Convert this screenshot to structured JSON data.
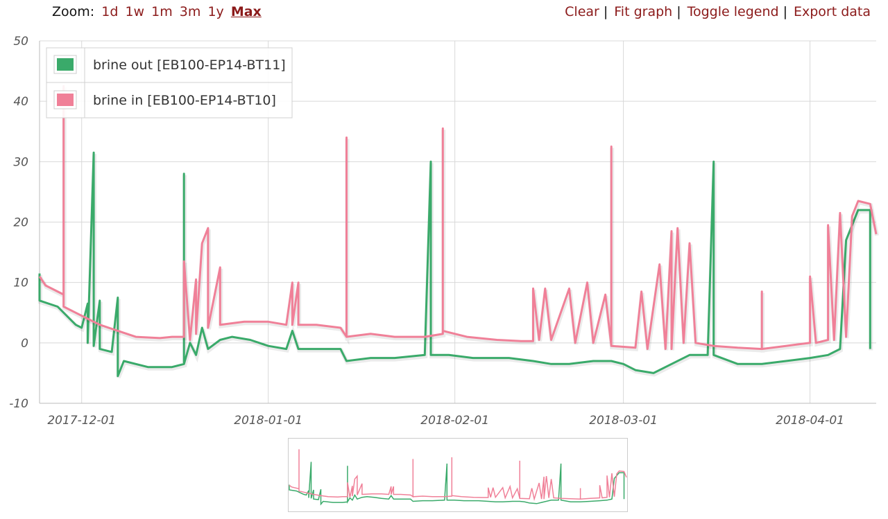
{
  "toolbar": {
    "zoom_label": "Zoom:",
    "zoom_options": [
      "1d",
      "1w",
      "1m",
      "3m",
      "1y",
      "Max"
    ],
    "zoom_active": "Max",
    "actions": [
      "Clear",
      "Fit graph",
      "Toggle legend",
      "Export data"
    ]
  },
  "colors": {
    "brine_out": "#3aaa6a",
    "brine_in": "#f08098",
    "link": "#8b1a1a",
    "grid": "#d8d8d8"
  },
  "chart_data": {
    "type": "line",
    "x_type": "date",
    "xlim": [
      "2017-11-24",
      "2018-04-12"
    ],
    "ylim": [
      -10,
      50
    ],
    "y_ticks": [
      "50",
      "40",
      "30",
      "20",
      "10",
      "0",
      "-10"
    ],
    "x_ticks": [
      "2017-12-01",
      "2018-01-01",
      "2018-02-01",
      "2018-03-01",
      "2018-04-01"
    ],
    "grid": true,
    "legend_position": "top-left",
    "series": [
      {
        "name": "brine out [EB100-EP14-BT11]",
        "color": "#3aaa6a",
        "points": [
          [
            "2017-11-24",
            11.5
          ],
          [
            "2017-11-24",
            7.0
          ],
          [
            "2017-11-27",
            6.0
          ],
          [
            "2017-11-29",
            4.0
          ],
          [
            "2017-11-30",
            3.0
          ],
          [
            "2017-12-01",
            2.5
          ],
          [
            "2017-12-02",
            6.5
          ],
          [
            "2017-12-02",
            0.0
          ],
          [
            "2017-12-03",
            31.5
          ],
          [
            "2017-12-03",
            -0.5
          ],
          [
            "2017-12-04",
            7.0
          ],
          [
            "2017-12-04",
            -1.0
          ],
          [
            "2017-12-06",
            -1.5
          ],
          [
            "2017-12-07",
            7.5
          ],
          [
            "2017-12-07",
            -5.5
          ],
          [
            "2017-12-08",
            -3.0
          ],
          [
            "2017-12-12",
            -4.0
          ],
          [
            "2017-12-16",
            -4.0
          ],
          [
            "2017-12-18",
            -3.5
          ],
          [
            "2017-12-18",
            28.0
          ],
          [
            "2017-12-18",
            -3.5
          ],
          [
            "2017-12-19",
            0.0
          ],
          [
            "2017-12-20",
            -2.0
          ],
          [
            "2017-12-21",
            2.5
          ],
          [
            "2017-12-22",
            -1.0
          ],
          [
            "2017-12-24",
            0.5
          ],
          [
            "2017-12-26",
            1.0
          ],
          [
            "2017-12-29",
            0.5
          ],
          [
            "2018-01-01",
            -0.5
          ],
          [
            "2018-01-04",
            -1.0
          ],
          [
            "2018-01-05",
            2.0
          ],
          [
            "2018-01-06",
            -1.0
          ],
          [
            "2018-01-10",
            -1.0
          ],
          [
            "2018-01-13",
            -1.0
          ],
          [
            "2018-01-14",
            -3.0
          ],
          [
            "2018-01-18",
            -2.5
          ],
          [
            "2018-01-22",
            -2.5
          ],
          [
            "2018-01-27",
            -2.0
          ],
          [
            "2018-01-28",
            30.0
          ],
          [
            "2018-01-28",
            -2.0
          ],
          [
            "2018-01-31",
            -2.0
          ],
          [
            "2018-02-04",
            -2.5
          ],
          [
            "2018-02-10",
            -2.5
          ],
          [
            "2018-02-14",
            -3.0
          ],
          [
            "2018-02-17",
            -3.5
          ],
          [
            "2018-02-20",
            -3.5
          ],
          [
            "2018-02-24",
            -3.0
          ],
          [
            "2018-02-27",
            -3.0
          ],
          [
            "2018-03-01",
            -3.5
          ],
          [
            "2018-03-03",
            -4.5
          ],
          [
            "2018-03-06",
            -5.0
          ],
          [
            "2018-03-08",
            -4.0
          ],
          [
            "2018-03-12",
            -2.0
          ],
          [
            "2018-03-15",
            -2.0
          ],
          [
            "2018-03-16",
            30.0
          ],
          [
            "2018-03-16",
            -2.0
          ],
          [
            "2018-03-20",
            -3.5
          ],
          [
            "2018-03-24",
            -3.5
          ],
          [
            "2018-03-28",
            -3.0
          ],
          [
            "2018-04-01",
            -2.5
          ],
          [
            "2018-04-04",
            -2.0
          ],
          [
            "2018-04-06",
            -1.0
          ],
          [
            "2018-04-07",
            17.0
          ],
          [
            "2018-04-09",
            22.0
          ],
          [
            "2018-04-11",
            22.0
          ],
          [
            "2018-04-11",
            -1.0
          ]
        ]
      },
      {
        "name": "brine in [EB100-EP14-BT10]",
        "color": "#f08098",
        "points": [
          [
            "2017-11-24",
            11.0
          ],
          [
            "2017-11-25",
            9.5
          ],
          [
            "2017-11-26",
            9.0
          ],
          [
            "2017-11-28",
            8.0
          ],
          [
            "2017-11-28",
            42.5
          ],
          [
            "2017-11-28",
            6.0
          ],
          [
            "2017-11-30",
            5.0
          ],
          [
            "2017-12-02",
            4.0
          ],
          [
            "2017-12-04",
            3.0
          ],
          [
            "2017-12-07",
            2.0
          ],
          [
            "2017-12-10",
            1.0
          ],
          [
            "2017-12-14",
            0.8
          ],
          [
            "2017-12-16",
            1.0
          ],
          [
            "2017-12-18",
            1.0
          ],
          [
            "2017-12-18",
            13.5
          ],
          [
            "2017-12-19",
            0.5
          ],
          [
            "2017-12-20",
            10.5
          ],
          [
            "2017-12-20",
            1.5
          ],
          [
            "2017-12-21",
            16.5
          ],
          [
            "2017-12-22",
            19.0
          ],
          [
            "2017-12-22",
            2.5
          ],
          [
            "2017-12-24",
            12.5
          ],
          [
            "2017-12-24",
            3.0
          ],
          [
            "2017-12-28",
            3.5
          ],
          [
            "2018-01-01",
            3.5
          ],
          [
            "2018-01-04",
            3.0
          ],
          [
            "2018-01-05",
            10.0
          ],
          [
            "2018-01-05",
            3.0
          ],
          [
            "2018-01-06",
            10.0
          ],
          [
            "2018-01-06",
            3.0
          ],
          [
            "2018-01-09",
            3.0
          ],
          [
            "2018-01-13",
            2.5
          ],
          [
            "2018-01-14",
            1.0
          ],
          [
            "2018-01-14",
            34.0
          ],
          [
            "2018-01-14",
            1.0
          ],
          [
            "2018-01-18",
            1.5
          ],
          [
            "2018-01-22",
            1.0
          ],
          [
            "2018-01-27",
            1.0
          ],
          [
            "2018-01-30",
            1.5
          ],
          [
            "2018-01-30",
            35.5
          ],
          [
            "2018-01-30",
            2.0
          ],
          [
            "2018-02-03",
            1.0
          ],
          [
            "2018-02-08",
            0.5
          ],
          [
            "2018-02-12",
            0.3
          ],
          [
            "2018-02-14",
            0.3
          ],
          [
            "2018-02-14",
            9.0
          ],
          [
            "2018-02-15",
            0.5
          ],
          [
            "2018-02-16",
            9.0
          ],
          [
            "2018-02-17",
            0.5
          ],
          [
            "2018-02-20",
            9.0
          ],
          [
            "2018-02-21",
            0.0
          ],
          [
            "2018-02-23",
            10.0
          ],
          [
            "2018-02-24",
            0.0
          ],
          [
            "2018-02-26",
            8.0
          ],
          [
            "2018-02-27",
            -0.5
          ],
          [
            "2018-02-27",
            32.5
          ],
          [
            "2018-02-27",
            -0.5
          ],
          [
            "2018-03-03",
            -0.8
          ],
          [
            "2018-03-04",
            8.5
          ],
          [
            "2018-03-05",
            -1.0
          ],
          [
            "2018-03-07",
            13.0
          ],
          [
            "2018-03-08",
            -1.0
          ],
          [
            "2018-03-09",
            18.5
          ],
          [
            "2018-03-09",
            -1.0
          ],
          [
            "2018-03-10",
            19.0
          ],
          [
            "2018-03-11",
            0.0
          ],
          [
            "2018-03-12",
            16.5
          ],
          [
            "2018-03-13",
            0.0
          ],
          [
            "2018-03-16",
            -0.5
          ],
          [
            "2018-03-20",
            -0.8
          ],
          [
            "2018-03-24",
            -1.0
          ],
          [
            "2018-03-24",
            8.5
          ],
          [
            "2018-03-24",
            -1.0
          ],
          [
            "2018-03-28",
            -0.5
          ],
          [
            "2018-04-01",
            0.0
          ],
          [
            "2018-04-01",
            11.0
          ],
          [
            "2018-04-02",
            0.0
          ],
          [
            "2018-04-04",
            0.5
          ],
          [
            "2018-04-04",
            19.5
          ],
          [
            "2018-04-05",
            0.5
          ],
          [
            "2018-04-06",
            21.5
          ],
          [
            "2018-04-07",
            1.0
          ],
          [
            "2018-04-08",
            21.0
          ],
          [
            "2018-04-09",
            23.5
          ],
          [
            "2018-04-11",
            23.0
          ],
          [
            "2018-04-12",
            18.0
          ]
        ]
      }
    ]
  }
}
